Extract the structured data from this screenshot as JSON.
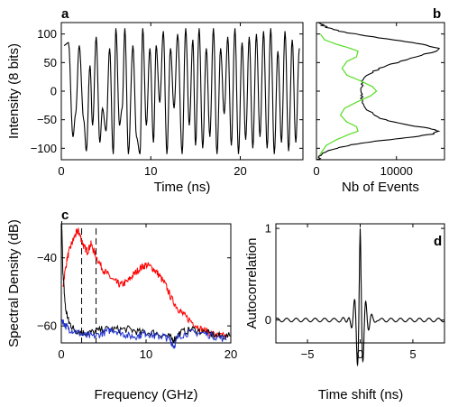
{
  "chart_data": [
    {
      "panel": "a",
      "type": "line",
      "xlabel": "Time (ns)",
      "ylabel": "Intensity (8 bits)",
      "xlim": [
        0,
        27
      ],
      "ylim": [
        -120,
        120
      ],
      "xticks": [
        0,
        10,
        20
      ],
      "yticks": [
        -100,
        -50,
        0,
        50,
        100
      ],
      "series": [
        {
          "color": "#000000",
          "peaks": [
            [
              0.3,
              80
            ],
            [
              0.8,
              85
            ],
            [
              1.3,
              -80
            ],
            [
              1.6,
              -40
            ],
            [
              2.0,
              80
            ],
            [
              2.5,
              -50
            ],
            [
              2.8,
              -105
            ],
            [
              3.2,
              45
            ],
            [
              3.5,
              -60
            ],
            [
              3.9,
              95
            ],
            [
              4.3,
              -90
            ],
            [
              4.6,
              -30
            ],
            [
              5.0,
              -70
            ],
            [
              5.4,
              75
            ],
            [
              5.8,
              -110
            ],
            [
              6.1,
              110
            ],
            [
              6.5,
              -60
            ],
            [
              6.8,
              -30
            ],
            [
              7.1,
              110
            ],
            [
              7.5,
              -110
            ],
            [
              8.0,
              80
            ],
            [
              8.4,
              -80
            ],
            [
              8.8,
              -110
            ],
            [
              9.1,
              110
            ],
            [
              9.5,
              -60
            ],
            [
              9.9,
              75
            ],
            [
              10.3,
              -90
            ],
            [
              10.6,
              80
            ],
            [
              11.0,
              -20
            ],
            [
              11.4,
              105
            ],
            [
              11.8,
              -110
            ],
            [
              12.2,
              75
            ],
            [
              12.6,
              -30
            ],
            [
              13.0,
              100
            ],
            [
              13.5,
              -110
            ],
            [
              13.9,
              110
            ],
            [
              14.3,
              -60
            ],
            [
              14.7,
              90
            ],
            [
              15.0,
              -95
            ],
            [
              15.4,
              110
            ],
            [
              15.8,
              -100
            ],
            [
              16.2,
              75
            ],
            [
              16.6,
              -80
            ],
            [
              17.0,
              110
            ],
            [
              17.4,
              -110
            ],
            [
              17.8,
              75
            ],
            [
              18.2,
              -40
            ],
            [
              18.6,
              95
            ],
            [
              19.0,
              -95
            ],
            [
              19.4,
              110
            ],
            [
              19.8,
              -110
            ],
            [
              20.2,
              85
            ],
            [
              20.6,
              -85
            ],
            [
              21.0,
              95
            ],
            [
              21.4,
              -100
            ],
            [
              21.8,
              100
            ],
            [
              22.2,
              -80
            ],
            [
              22.6,
              105
            ],
            [
              23.0,
              -100
            ],
            [
              23.4,
              110
            ],
            [
              23.8,
              -110
            ],
            [
              24.2,
              70
            ],
            [
              24.6,
              -90
            ],
            [
              25.0,
              105
            ],
            [
              25.4,
              -105
            ],
            [
              25.8,
              90
            ],
            [
              26.2,
              -90
            ],
            [
              26.6,
              75
            ]
          ]
        }
      ]
    },
    {
      "panel": "b",
      "type": "line",
      "xlabel": "Nb of Events",
      "xlim": [
        0,
        16000
      ],
      "ylim": [
        -120,
        120
      ],
      "xticks": [
        0,
        10000
      ],
      "series": [
        {
          "color": "#000000",
          "points": [
            [
              200,
              -120
            ],
            [
              500,
              -112
            ],
            [
              1200,
              -105
            ],
            [
              2500,
              -100
            ],
            [
              4000,
              -95
            ],
            [
              6000,
              -90
            ],
            [
              9000,
              -85
            ],
            [
              12000,
              -80
            ],
            [
              14500,
              -75
            ],
            [
              15300,
              -70
            ],
            [
              14000,
              -65
            ],
            [
              11000,
              -58
            ],
            [
              8500,
              -50
            ],
            [
              7000,
              -40
            ],
            [
              6200,
              -30
            ],
            [
              5800,
              -20
            ],
            [
              5600,
              -10
            ],
            [
              5500,
              0
            ],
            [
              5600,
              10
            ],
            [
              5800,
              20
            ],
            [
              6500,
              30
            ],
            [
              8000,
              40
            ],
            [
              10000,
              50
            ],
            [
              12500,
              60
            ],
            [
              14800,
              70
            ],
            [
              15200,
              75
            ],
            [
              13500,
              82
            ],
            [
              10500,
              88
            ],
            [
              7000,
              95
            ],
            [
              4000,
              102
            ],
            [
              2000,
              108
            ],
            [
              800,
              115
            ],
            [
              200,
              120
            ]
          ]
        },
        {
          "color": "#55dd22",
          "points": [
            [
              400,
              -112
            ],
            [
              1200,
              -95
            ],
            [
              2500,
              -85
            ],
            [
              4000,
              -76
            ],
            [
              5200,
              -70
            ],
            [
              5000,
              -62
            ],
            [
              3800,
              -54
            ],
            [
              3000,
              -42
            ],
            [
              3500,
              -30
            ],
            [
              5200,
              -18
            ],
            [
              6800,
              -8
            ],
            [
              7500,
              0
            ],
            [
              7000,
              8
            ],
            [
              5500,
              18
            ],
            [
              3800,
              28
            ],
            [
              3200,
              40
            ],
            [
              3800,
              52
            ],
            [
              5000,
              60
            ],
            [
              5200,
              70
            ],
            [
              4000,
              76
            ],
            [
              2500,
              82
            ],
            [
              1000,
              90
            ],
            [
              500,
              100
            ]
          ]
        }
      ]
    },
    {
      "panel": "c",
      "type": "line",
      "xlabel": "Frequency (GHz)",
      "ylabel": "Spectral Density (dB)",
      "xlim": [
        0,
        20
      ],
      "ylim": [
        -65,
        -30
      ],
      "xticks": [
        0,
        10,
        20
      ],
      "yticks": [
        -60,
        -40
      ],
      "vlines": [
        2.4,
        4.1
      ],
      "series": [
        {
          "color": "#ff0000",
          "points": [
            [
              0.2,
              -48
            ],
            [
              0.7,
              -40
            ],
            [
              1.2,
              -36
            ],
            [
              1.7,
              -33
            ],
            [
              2.0,
              -32
            ],
            [
              2.3,
              -34
            ],
            [
              2.7,
              -37
            ],
            [
              3.1,
              -38
            ],
            [
              3.5,
              -36
            ],
            [
              4.0,
              -39
            ],
            [
              4.8,
              -43
            ],
            [
              5.5,
              -45
            ],
            [
              6.3,
              -47
            ],
            [
              7.0,
              -48
            ],
            [
              7.8,
              -47
            ],
            [
              8.5,
              -45
            ],
            [
              9.3,
              -43
            ],
            [
              10.0,
              -42
            ],
            [
              10.8,
              -43
            ],
            [
              11.5,
              -45
            ],
            [
              12.3,
              -48
            ],
            [
              13.0,
              -52
            ],
            [
              13.8,
              -55
            ],
            [
              14.5,
              -57
            ],
            [
              15.5,
              -59
            ],
            [
              16.5,
              -61
            ],
            [
              17.5,
              -62
            ],
            [
              18.5,
              -63
            ],
            [
              19.5,
              -63
            ]
          ]
        },
        {
          "color": "#000000",
          "points": [
            [
              0.05,
              -30
            ],
            [
              0.2,
              -45
            ],
            [
              0.5,
              -55
            ],
            [
              0.9,
              -59
            ],
            [
              1.5,
              -61
            ],
            [
              2.5,
              -62
            ],
            [
              3.5,
              -62
            ],
            [
              5.0,
              -61
            ],
            [
              6.5,
              -61
            ],
            [
              8.0,
              -61
            ],
            [
              9.5,
              -62
            ],
            [
              11.0,
              -62
            ],
            [
              12.5,
              -63
            ],
            [
              13.3,
              -64
            ],
            [
              14.0,
              -62
            ],
            [
              15.5,
              -61
            ],
            [
              17.0,
              -62
            ],
            [
              18.5,
              -63
            ],
            [
              20.0,
              -63
            ]
          ]
        },
        {
          "color": "#2233cc",
          "points": [
            [
              0.05,
              -58
            ],
            [
              0.5,
              -60
            ],
            [
              1.0,
              -61
            ],
            [
              2.0,
              -62
            ],
            [
              3.0,
              -63
            ],
            [
              4.0,
              -63
            ],
            [
              5.0,
              -62
            ],
            [
              6.0,
              -61
            ],
            [
              7.0,
              -62
            ],
            [
              8.0,
              -63
            ],
            [
              9.0,
              -63
            ],
            [
              10.0,
              -62
            ],
            [
              11.0,
              -63
            ],
            [
              12.0,
              -63
            ],
            [
              12.8,
              -64
            ],
            [
              13.3,
              -66
            ],
            [
              13.8,
              -63
            ],
            [
              15.0,
              -62
            ],
            [
              16.5,
              -62
            ],
            [
              18.0,
              -63
            ],
            [
              19.5,
              -64
            ]
          ]
        }
      ]
    },
    {
      "panel": "d",
      "type": "line",
      "xlabel": "Time shift (ns)",
      "ylabel": "Autocorrelation",
      "xlim": [
        -8,
        8
      ],
      "ylim": [
        -0.25,
        1.05
      ],
      "xticks": [
        -5,
        0,
        5
      ],
      "yticks": [
        0,
        1
      ],
      "series": [
        {
          "color": "#000000",
          "function": "damped-cosine",
          "period_ns": 0.55,
          "decay_ns": 0.35,
          "ripple_amplitude": 0.02
        }
      ]
    }
  ]
}
